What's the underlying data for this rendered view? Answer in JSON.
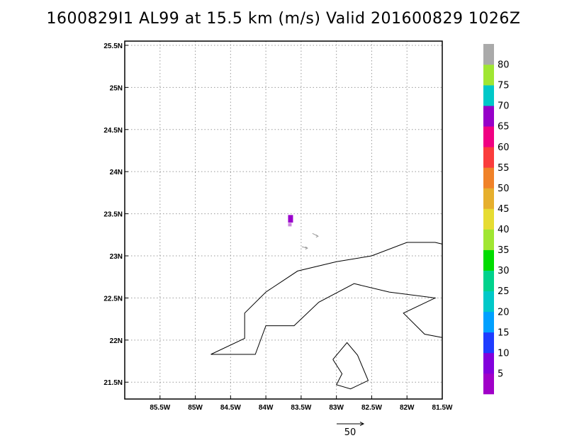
{
  "title": "1600829I1 AL99 at 15.5 km (m/s) Valid 201600829 1026Z",
  "map": {
    "lon_range": [
      -86.0,
      -81.5
    ],
    "lat_range": [
      21.3,
      25.55
    ],
    "lon_ticks": [
      {
        "value": -85.5,
        "label": "85.5W"
      },
      {
        "value": -85.0,
        "label": "85W"
      },
      {
        "value": -84.5,
        "label": "84.5W"
      },
      {
        "value": -84.0,
        "label": "84W"
      },
      {
        "value": -83.5,
        "label": "83.5W"
      },
      {
        "value": -83.0,
        "label": "83W"
      },
      {
        "value": -82.5,
        "label": "82.5W"
      },
      {
        "value": -82.0,
        "label": "82W"
      },
      {
        "value": -81.5,
        "label": "81.5W"
      }
    ],
    "lat_ticks": [
      {
        "value": 21.5,
        "label": "21.5N"
      },
      {
        "value": 22.0,
        "label": "22N"
      },
      {
        "value": 22.5,
        "label": "22.5N"
      },
      {
        "value": 23.0,
        "label": "23N"
      },
      {
        "value": 23.5,
        "label": "23.5N"
      },
      {
        "value": 24.0,
        "label": "24N"
      },
      {
        "value": 24.5,
        "label": "24.5N"
      },
      {
        "value": 25.0,
        "label": "25N"
      },
      {
        "value": 25.5,
        "label": "25.5N"
      }
    ],
    "grid": "dotted",
    "coast_main": [
      [
        -84.78,
        21.83
      ],
      [
        -84.3,
        22.02
      ],
      [
        -84.3,
        22.32
      ],
      [
        -84.0,
        22.57
      ],
      [
        -83.55,
        22.82
      ],
      [
        -83.0,
        22.93
      ],
      [
        -82.5,
        23.0
      ],
      [
        -82.0,
        23.16
      ],
      [
        -81.6,
        23.16
      ],
      [
        -81.5,
        23.14
      ]
    ],
    "coast_south": [
      [
        -84.78,
        21.83
      ],
      [
        -84.15,
        21.83
      ],
      [
        -84.0,
        22.17
      ],
      [
        -83.6,
        22.17
      ],
      [
        -83.25,
        22.45
      ],
      [
        -82.75,
        22.67
      ],
      [
        -82.25,
        22.57
      ],
      [
        -81.6,
        22.5
      ],
      [
        -82.05,
        22.32
      ],
      [
        -81.75,
        22.07
      ],
      [
        -81.5,
        22.03
      ]
    ],
    "isle_of_youth": [
      [
        -83.05,
        21.77
      ],
      [
        -82.85,
        21.97
      ],
      [
        -82.7,
        21.82
      ],
      [
        -82.55,
        21.52
      ],
      [
        -82.8,
        21.42
      ],
      [
        -83.0,
        21.47
      ],
      [
        -82.92,
        21.6
      ],
      [
        -83.05,
        21.77
      ]
    ],
    "wind_cells": [
      {
        "lon": -83.65,
        "lat": 23.44,
        "dlon": 0.07,
        "dlat": 0.09,
        "color": "#9900cc"
      },
      {
        "lon": -83.66,
        "lat": 23.37,
        "dlon": 0.05,
        "dlat": 0.04,
        "color": "#cc88dd"
      }
    ],
    "small_vectors": [
      {
        "lon": -83.3,
        "lat": 23.25,
        "u": 4,
        "v": 2
      },
      {
        "lon": -83.45,
        "lat": 23.1,
        "u": 4,
        "v": 1
      }
    ],
    "reference_vector": {
      "label": "50"
    }
  },
  "colorbar": {
    "labels": [
      "5",
      "10",
      "15",
      "20",
      "25",
      "30",
      "35",
      "40",
      "45",
      "50",
      "55",
      "60",
      "65",
      "70",
      "75",
      "80"
    ],
    "colors": [
      "#a000c8",
      "#8200dc",
      "#1e3cff",
      "#00a0ff",
      "#00c8c8",
      "#00d28c",
      "#00dc00",
      "#a0e632",
      "#e6dc32",
      "#e6af2d",
      "#f08228",
      "#fa3c3c",
      "#f00082",
      "#9600c8",
      "#00c8c8",
      "#a0e632",
      "#aaaaaa"
    ]
  }
}
